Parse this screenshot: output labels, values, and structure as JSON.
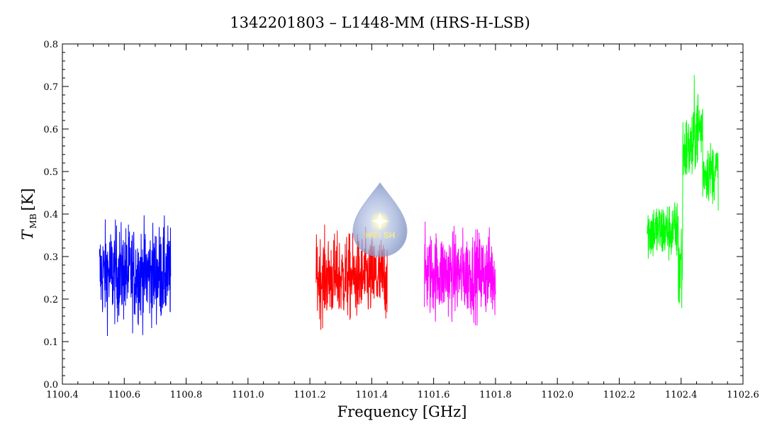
{
  "chart_data": {
    "type": "line",
    "title": "1342201803 – L1448-MM (HRS-H-LSB)",
    "xlabel": "Frequency [GHz]",
    "ylabel_main": "T",
    "ylabel_sub": "MB",
    "ylabel_unit": "[K]",
    "xlim": [
      1100.4,
      1102.6
    ],
    "ylim": [
      0.0,
      0.8
    ],
    "x_ticks": [
      "1100.4",
      "1100.6",
      "1100.8",
      "1101.0",
      "1101.2",
      "1101.4",
      "1101.6",
      "1101.8",
      "1102.0",
      "1102.2",
      "1102.4",
      "1102.6"
    ],
    "y_ticks": [
      "0.0",
      "0.1",
      "0.2",
      "0.3",
      "0.4",
      "0.5",
      "0.6",
      "0.7",
      "0.8"
    ],
    "grid": false,
    "legend": "none",
    "series": [
      {
        "color": "#0000ff",
        "x_range": [
          1100.52,
          1100.75
        ],
        "points": 360,
        "segments": [
          {
            "x_end": 1100.75,
            "mean": 0.26,
            "noise": 0.08
          }
        ],
        "min": 0.05,
        "max": 0.48
      },
      {
        "color": "#ff0000",
        "x_range": [
          1101.22,
          1101.45
        ],
        "points": 360,
        "segments": [
          {
            "x_end": 1101.45,
            "mean": 0.25,
            "noise": 0.07
          }
        ],
        "min": 0.05,
        "max": 0.45
      },
      {
        "color": "#ff00ff",
        "x_range": [
          1101.57,
          1101.8
        ],
        "points": 360,
        "segments": [
          {
            "x_end": 1101.8,
            "mean": 0.26,
            "noise": 0.07
          }
        ],
        "min": 0.07,
        "max": 0.47
      },
      {
        "color": "#00ff00",
        "x_range": [
          1102.29,
          1102.52
        ],
        "points": 360,
        "segments": [
          {
            "x_end": 1102.39,
            "mean": 0.36,
            "noise": 0.05
          },
          {
            "x_end": 1102.405,
            "mean": 0.28,
            "noise": 0.1
          },
          {
            "x_end": 1102.44,
            "mean": 0.55,
            "noise": 0.06
          },
          {
            "x_end": 1102.47,
            "mean": 0.6,
            "noise": 0.07
          },
          {
            "x_end": 1102.52,
            "mean": 0.5,
            "noise": 0.05
          }
        ],
        "min": 0.07,
        "max": 0.76
      }
    ]
  },
  "watermark": {
    "icon": "drop-logo-icon",
    "text": "HIFI SH"
  },
  "colors": {
    "axis": "#000000",
    "background": "#ffffff"
  }
}
